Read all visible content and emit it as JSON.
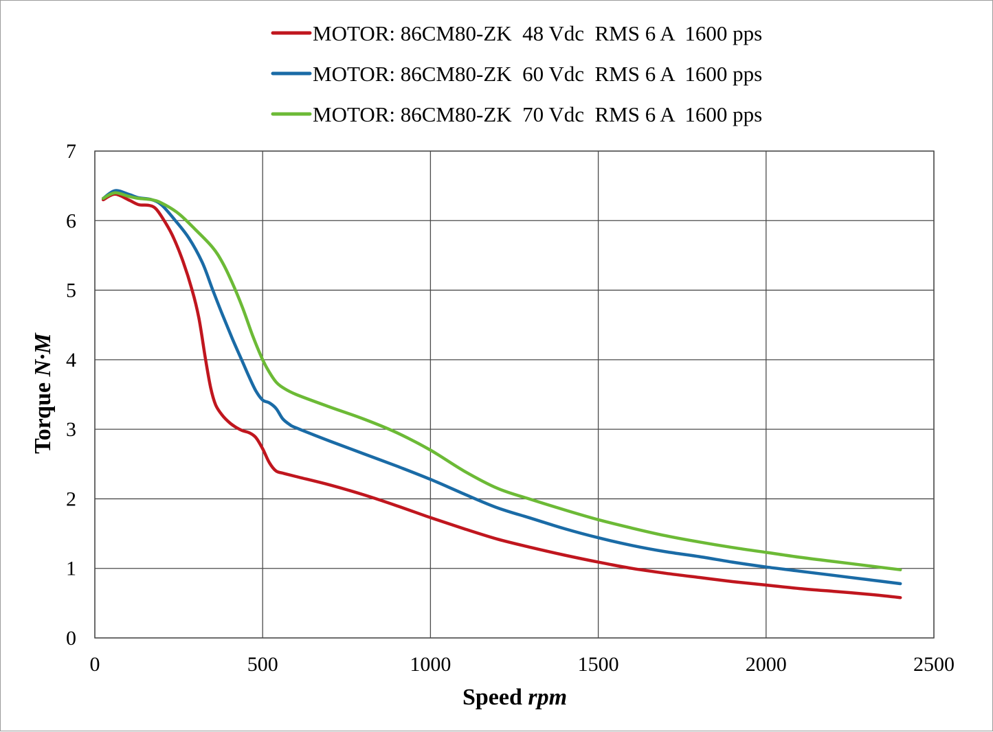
{
  "chart_data": {
    "type": "line",
    "title": "",
    "xlabel": "Speed",
    "xlabel_unit": "rpm",
    "ylabel": "Torque",
    "ylabel_unit": "N·M",
    "xlim": [
      0,
      2500
    ],
    "ylim": [
      0,
      7
    ],
    "x_ticks": [
      "0",
      "500",
      "1000",
      "1500",
      "2000",
      "2500"
    ],
    "y_ticks": [
      "0",
      "1",
      "2",
      "3",
      "4",
      "5",
      "6",
      "7"
    ],
    "grid": true,
    "legend_position": "top",
    "series": [
      {
        "name": "MOTOR: 86CM80-ZK  48 Vdc  RMS 6 A  1600 pps",
        "color": "#c0161e",
        "x": [
          25,
          60,
          100,
          130,
          160,
          180,
          200,
          230,
          260,
          290,
          310,
          330,
          345,
          360,
          380,
          400,
          420,
          440,
          460,
          480,
          500,
          520,
          540,
          560,
          600,
          700,
          800,
          900,
          1000,
          1100,
          1200,
          1300,
          1400,
          1500,
          1600,
          1700,
          1800,
          1900,
          2000,
          2100,
          2200,
          2300,
          2400
        ],
        "y": [
          6.3,
          6.38,
          6.3,
          6.23,
          6.22,
          6.18,
          6.05,
          5.8,
          5.45,
          5.0,
          4.6,
          4.0,
          3.6,
          3.35,
          3.2,
          3.1,
          3.03,
          2.98,
          2.95,
          2.88,
          2.72,
          2.52,
          2.4,
          2.37,
          2.32,
          2.2,
          2.06,
          1.9,
          1.73,
          1.57,
          1.42,
          1.3,
          1.19,
          1.09,
          1.0,
          0.93,
          0.87,
          0.81,
          0.76,
          0.71,
          0.67,
          0.63,
          0.58
        ]
      },
      {
        "name": "MOTOR: 86CM80-ZK  60 Vdc  RMS 6 A  1600 pps",
        "color": "#1a6ba6",
        "x": [
          25,
          60,
          100,
          130,
          170,
          200,
          240,
          280,
          320,
          350,
          380,
          410,
          440,
          460,
          480,
          500,
          520,
          540,
          560,
          580,
          600,
          700,
          800,
          900,
          1000,
          1100,
          1200,
          1300,
          1400,
          1500,
          1600,
          1700,
          1800,
          1900,
          2000,
          2100,
          2200,
          2300,
          2400
        ],
        "y": [
          6.32,
          6.43,
          6.38,
          6.33,
          6.3,
          6.22,
          6.0,
          5.75,
          5.4,
          5.02,
          4.65,
          4.3,
          3.97,
          3.75,
          3.55,
          3.42,
          3.38,
          3.3,
          3.15,
          3.07,
          3.02,
          2.83,
          2.65,
          2.47,
          2.28,
          2.07,
          1.87,
          1.72,
          1.57,
          1.44,
          1.33,
          1.24,
          1.17,
          1.09,
          1.02,
          0.96,
          0.9,
          0.84,
          0.78
        ]
      },
      {
        "name": "MOTOR: 86CM80-ZK  70 Vdc  RMS 6 A  1600 pps",
        "color": "#6cba36",
        "x": [
          25,
          60,
          100,
          130,
          170,
          200,
          250,
          300,
          350,
          380,
          410,
          440,
          470,
          500,
          520,
          540,
          560,
          600,
          700,
          800,
          900,
          1000,
          1100,
          1200,
          1300,
          1400,
          1500,
          1600,
          1700,
          1800,
          1900,
          2000,
          2100,
          2200,
          2300,
          2400
        ],
        "y": [
          6.32,
          6.4,
          6.35,
          6.32,
          6.3,
          6.25,
          6.1,
          5.87,
          5.62,
          5.4,
          5.1,
          4.75,
          4.35,
          4.0,
          3.82,
          3.68,
          3.6,
          3.5,
          3.32,
          3.15,
          2.95,
          2.7,
          2.4,
          2.15,
          1.99,
          1.84,
          1.7,
          1.58,
          1.47,
          1.38,
          1.3,
          1.23,
          1.16,
          1.1,
          1.04,
          0.98
        ]
      }
    ]
  }
}
